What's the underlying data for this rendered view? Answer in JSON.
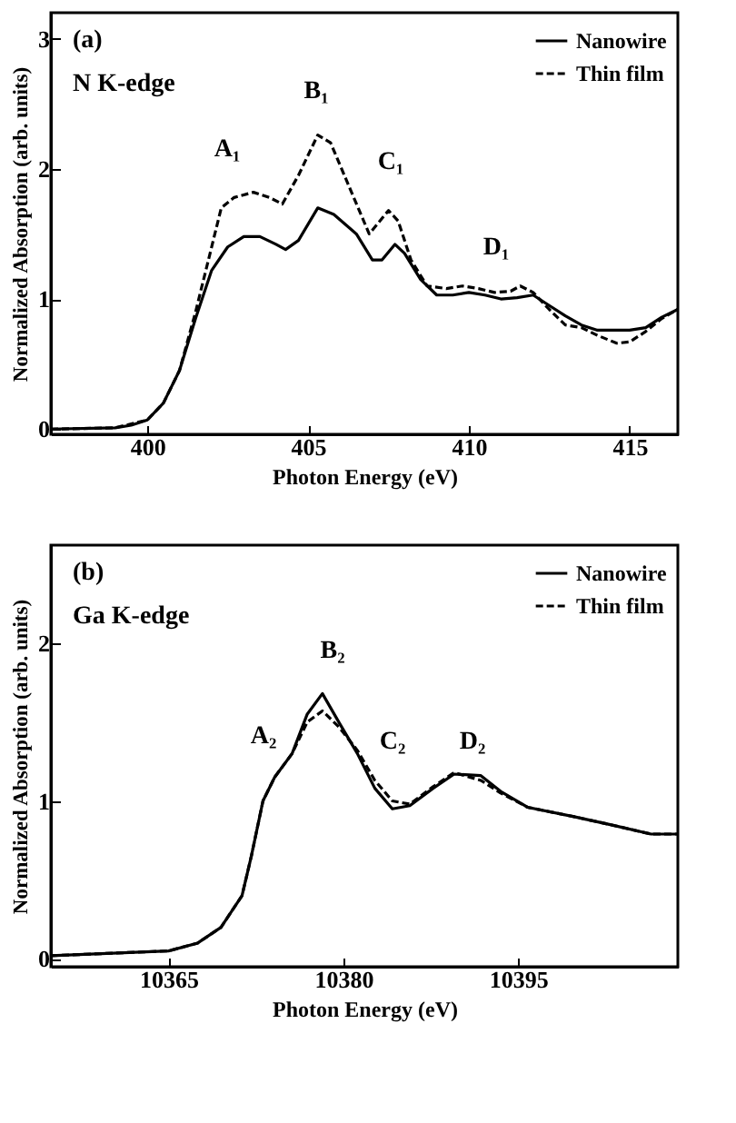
{
  "chart_data": [
    {
      "type": "line",
      "xlabel": "Photon Energy (eV)",
      "ylabel": "Normalized Absorption (arb. units)",
      "xlim": [
        397,
        416.5
      ],
      "ylim": [
        -0.04,
        3.2
      ],
      "xticks": [
        400,
        405,
        410,
        415
      ],
      "yticks": [
        0,
        1,
        2,
        3
      ],
      "grid": false,
      "legend": "top right",
      "marker": "none",
      "annotations": [
        "(a)",
        "N K-edge",
        "A₁",
        "B₁",
        "C₁",
        "D₁"
      ],
      "series": [
        {
          "name": "Nanowire",
          "color": "#000000",
          "line_style": "solid",
          "x": [
            397,
            399,
            399.5,
            400,
            400.5,
            401,
            401.5,
            402,
            402.5,
            403,
            403.5,
            404,
            404.3,
            404.7,
            405.3,
            405.8,
            406.5,
            407,
            407.3,
            407.7,
            408,
            408.5,
            409,
            409.5,
            410,
            410.5,
            411,
            411.5,
            412,
            412.5,
            413,
            413.5,
            414,
            415,
            415.5,
            416,
            416.5
          ],
          "values": [
            0,
            0.01,
            0.03,
            0.07,
            0.2,
            0.45,
            0.85,
            1.22,
            1.4,
            1.48,
            1.48,
            1.42,
            1.38,
            1.45,
            1.7,
            1.65,
            1.5,
            1.3,
            1.3,
            1.42,
            1.35,
            1.15,
            1.03,
            1.03,
            1.05,
            1.03,
            1,
            1.01,
            1.03,
            0.95,
            0.87,
            0.8,
            0.76,
            0.76,
            0.78,
            0.86,
            0.92
          ]
        },
        {
          "name": "Thin film",
          "color": "#000000",
          "line_style": "dashed",
          "x": [
            397,
            399,
            400,
            400.5,
            401,
            401.5,
            402,
            402.3,
            402.7,
            403.3,
            403.8,
            404.2,
            404.7,
            405.3,
            405.7,
            406.3,
            406.9,
            407.3,
            407.5,
            407.8,
            408.2,
            408.7,
            409.3,
            409.8,
            410.3,
            410.8,
            411.3,
            411.6,
            412,
            412.5,
            413,
            413.5,
            414,
            414.6,
            415,
            415.5,
            416,
            416.5
          ],
          "values": [
            0,
            0.01,
            0.07,
            0.2,
            0.45,
            0.9,
            1.4,
            1.7,
            1.78,
            1.82,
            1.78,
            1.73,
            1.95,
            2.26,
            2.2,
            1.85,
            1.5,
            1.62,
            1.68,
            1.6,
            1.3,
            1.1,
            1.08,
            1.1,
            1.08,
            1.05,
            1.06,
            1.1,
            1.05,
            0.92,
            0.8,
            0.78,
            0.72,
            0.66,
            0.67,
            0.75,
            0.85,
            0.92
          ]
        }
      ]
    },
    {
      "type": "line",
      "xlabel": "Photon Energy (eV)",
      "ylabel": "Normalized Absorption (arb. units)",
      "xlim": [
        10354.9,
        10408.7
      ],
      "ylim": [
        -0.05,
        2.62
      ],
      "xticks": [
        10365,
        10380,
        10395
      ],
      "yticks": [
        0,
        1,
        2
      ],
      "grid": false,
      "legend": "top right",
      "marker": "none",
      "annotations": [
        "(b)",
        "Ga K-edge",
        "A₂",
        "B₂",
        "C₂",
        "D₂"
      ],
      "series": [
        {
          "name": "Nanowire",
          "color": "#000000",
          "line_style": "solid",
          "x": [
            10354.9,
            10365,
            10367.5,
            10369.5,
            10371.3,
            10372.1,
            10373.1,
            10374.1,
            10375.6,
            10376.9,
            10378.2,
            10379.6,
            10381.2,
            10382.7,
            10384.2,
            10385.7,
            10387.7,
            10389.5,
            10391.8,
            10393.5,
            10395.8,
            10399.8,
            10402.9,
            10406.4,
            10408.7
          ],
          "values": [
            0.02,
            0.05,
            0.1,
            0.2,
            0.4,
            0.65,
            1,
            1.15,
            1.3,
            1.55,
            1.68,
            1.5,
            1.3,
            1.08,
            0.95,
            0.97,
            1.08,
            1.17,
            1.16,
            1.06,
            0.96,
            0.9,
            0.85,
            0.79,
            0.79
          ]
        },
        {
          "name": "Thin film",
          "color": "#000000",
          "line_style": "dashed",
          "x": [
            10354.9,
            10365,
            10367.5,
            10369.5,
            10371.3,
            10372.1,
            10373.1,
            10374.1,
            10375.6,
            10376.9,
            10378.2,
            10379.6,
            10381.2,
            10382.7,
            10384.2,
            10385.7,
            10387.7,
            10389.5,
            10391.8,
            10393.5,
            10395.8,
            10399.8,
            10402.9,
            10406.4,
            10408.7
          ],
          "values": [
            0.02,
            0.05,
            0.1,
            0.2,
            0.4,
            0.65,
            1,
            1.15,
            1.3,
            1.5,
            1.57,
            1.47,
            1.32,
            1.13,
            1,
            0.98,
            1.09,
            1.18,
            1.13,
            1.05,
            0.96,
            0.9,
            0.85,
            0.79,
            0.79
          ]
        }
      ]
    }
  ]
}
